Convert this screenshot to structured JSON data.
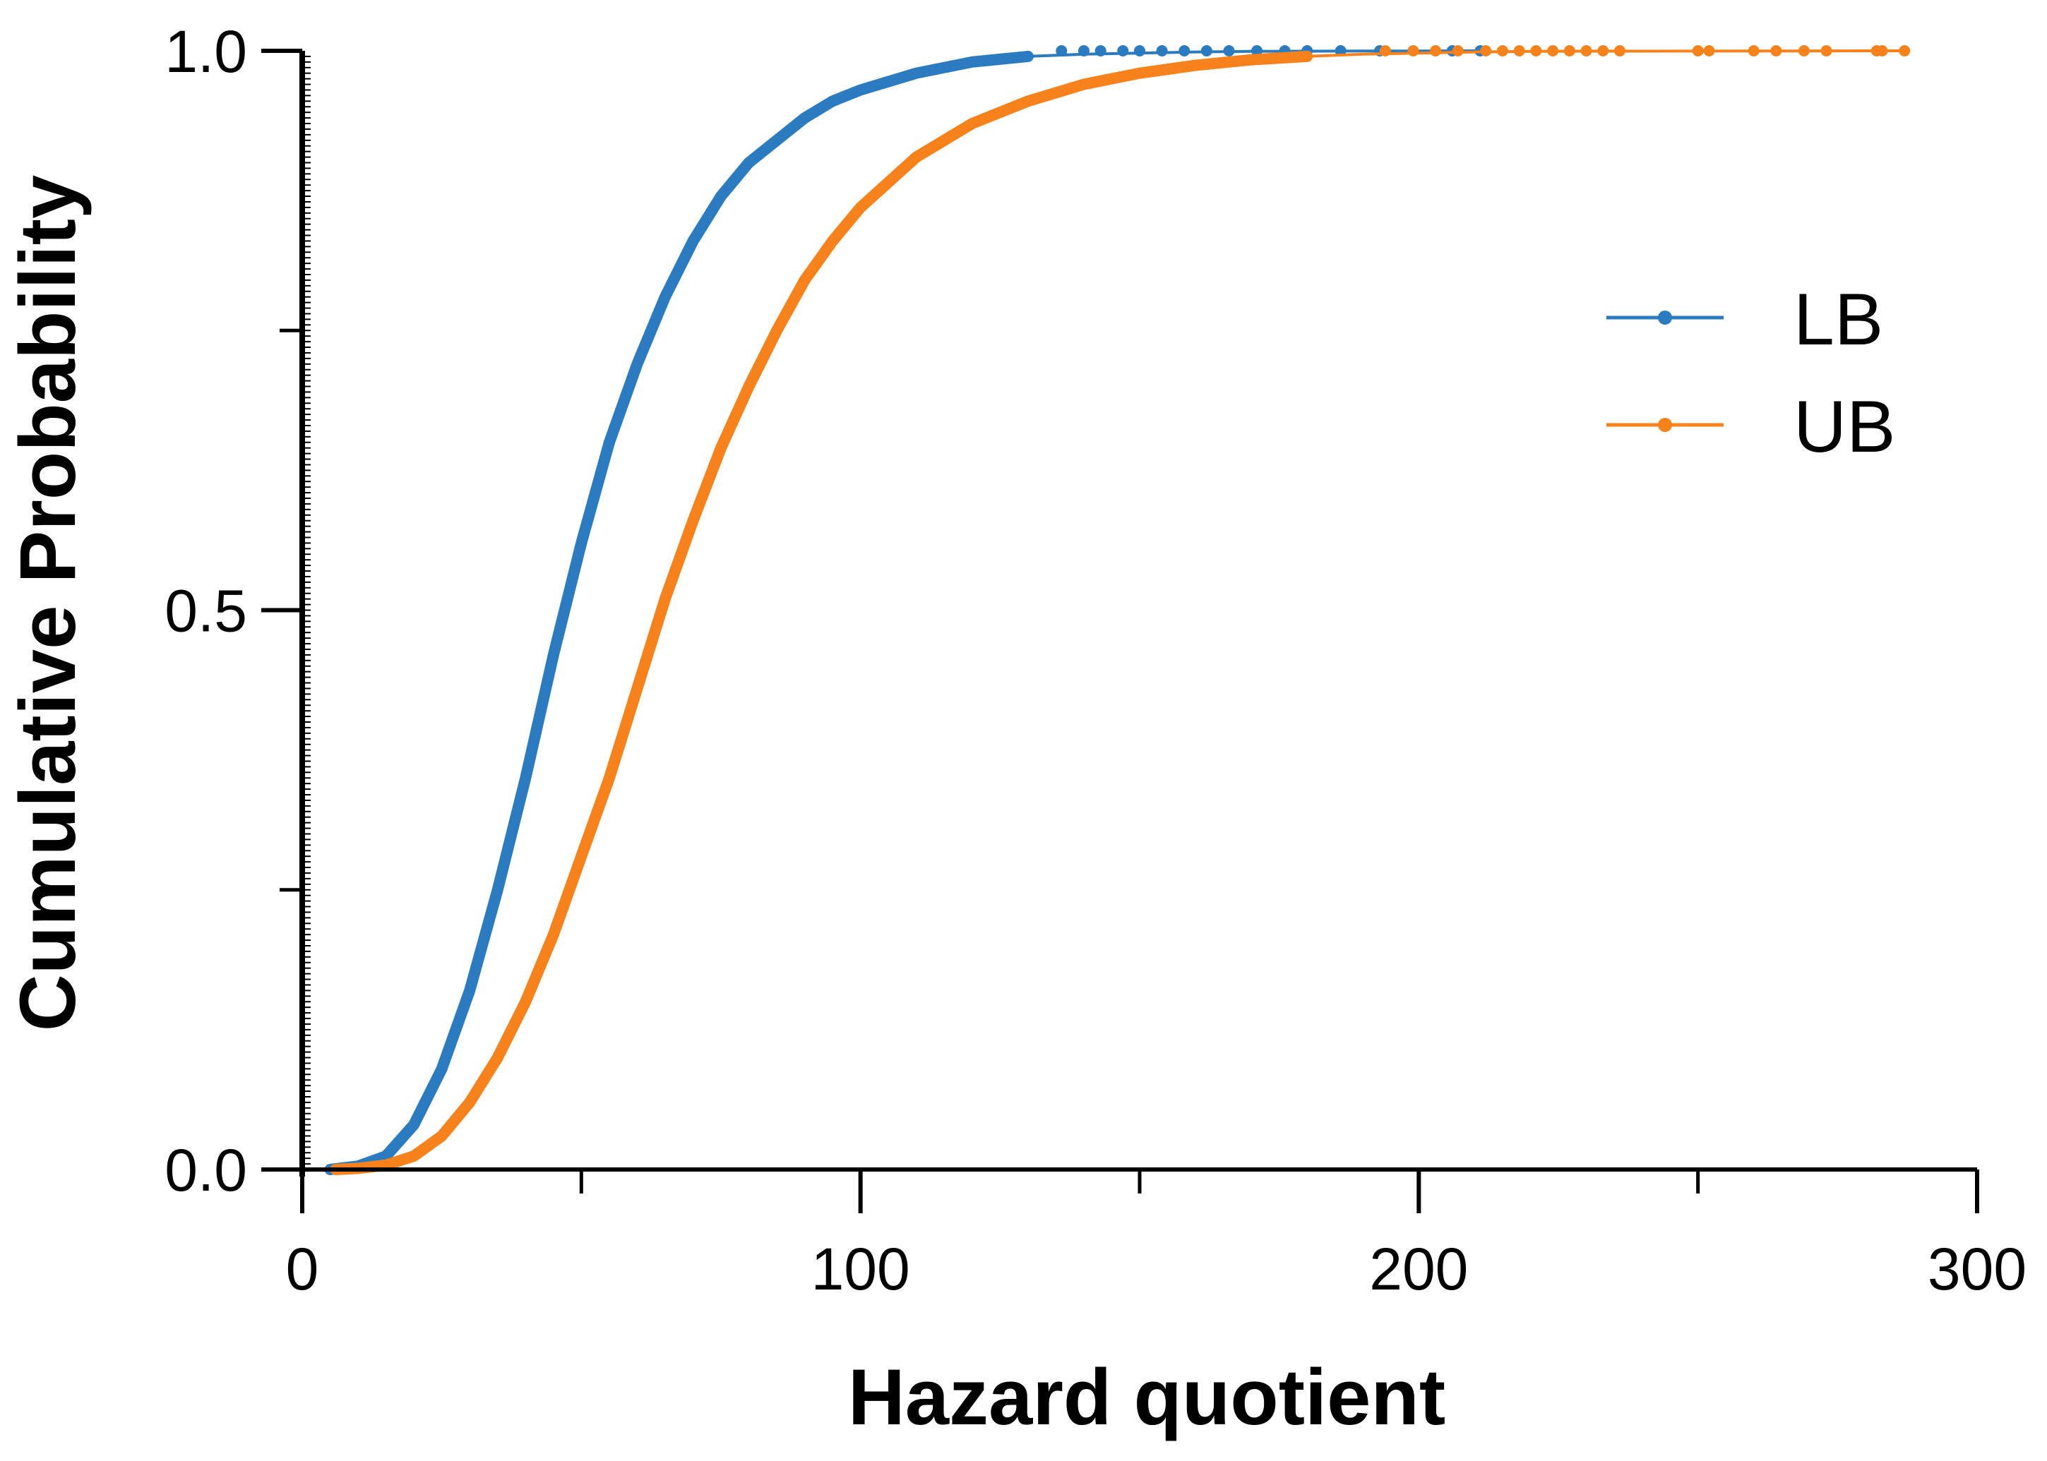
{
  "chart_data": {
    "type": "line",
    "xlabel": "Hazard quotient",
    "ylabel": "Cumulative Probability",
    "xlim": [
      0,
      300
    ],
    "ylim": [
      0,
      1.0
    ],
    "x_ticks": [
      0,
      100,
      200,
      300
    ],
    "x_tick_labels": [
      "0",
      "100",
      "200",
      "300"
    ],
    "x_minor_ticks": [
      50,
      150,
      250
    ],
    "y_ticks": [
      0.0,
      0.5,
      1.0
    ],
    "y_tick_labels": [
      "0.0",
      "0.5",
      "1.0"
    ],
    "y_minor_ticks": [
      0.25,
      0.75
    ],
    "grid": false,
    "legend_position": "right",
    "series": [
      {
        "name": "LB",
        "color": "#2a7bbf",
        "points": [
          [
            5,
            0.0
          ],
          [
            10,
            0.003
          ],
          [
            15,
            0.012
          ],
          [
            20,
            0.04
          ],
          [
            25,
            0.09
          ],
          [
            30,
            0.16
          ],
          [
            35,
            0.25
          ],
          [
            40,
            0.35
          ],
          [
            45,
            0.46
          ],
          [
            50,
            0.56
          ],
          [
            55,
            0.65
          ],
          [
            60,
            0.72
          ],
          [
            65,
            0.78
          ],
          [
            70,
            0.83
          ],
          [
            75,
            0.87
          ],
          [
            80,
            0.9
          ],
          [
            85,
            0.92
          ],
          [
            90,
            0.94
          ],
          [
            95,
            0.955
          ],
          [
            100,
            0.965
          ],
          [
            110,
            0.98
          ],
          [
            120,
            0.99
          ],
          [
            130,
            0.995
          ],
          [
            140,
            0.997
          ],
          [
            150,
            0.998
          ],
          [
            160,
            0.999
          ],
          [
            170,
            0.9995
          ],
          [
            180,
            0.9997
          ],
          [
            190,
            0.9998
          ],
          [
            200,
            0.9999
          ],
          [
            212,
            1.0
          ]
        ],
        "markers": [
          136,
          140,
          143,
          147,
          150,
          154,
          158,
          162,
          166,
          171,
          176,
          180,
          186,
          193,
          206,
          211
        ]
      },
      {
        "name": "UB",
        "color": "#f7821b",
        "points": [
          [
            6,
            0.0
          ],
          [
            10,
            0.001
          ],
          [
            15,
            0.004
          ],
          [
            20,
            0.012
          ],
          [
            25,
            0.03
          ],
          [
            30,
            0.06
          ],
          [
            35,
            0.1
          ],
          [
            40,
            0.15
          ],
          [
            45,
            0.21
          ],
          [
            50,
            0.28
          ],
          [
            55,
            0.35
          ],
          [
            60,
            0.43
          ],
          [
            65,
            0.51
          ],
          [
            70,
            0.58
          ],
          [
            75,
            0.645
          ],
          [
            80,
            0.7
          ],
          [
            85,
            0.75
          ],
          [
            90,
            0.795
          ],
          [
            95,
            0.83
          ],
          [
            100,
            0.86
          ],
          [
            110,
            0.905
          ],
          [
            120,
            0.935
          ],
          [
            130,
            0.955
          ],
          [
            140,
            0.97
          ],
          [
            150,
            0.98
          ],
          [
            160,
            0.987
          ],
          [
            170,
            0.992
          ],
          [
            180,
            0.995
          ],
          [
            190,
            0.997
          ],
          [
            200,
            0.998
          ],
          [
            210,
            0.999
          ],
          [
            220,
            0.9995
          ],
          [
            235,
            0.9997
          ],
          [
            260,
            0.9998
          ],
          [
            287,
            1.0
          ]
        ],
        "markers": [
          194,
          199,
          203,
          207,
          212,
          215,
          218,
          221,
          224,
          227,
          230,
          233,
          236,
          250,
          252,
          260,
          264,
          269,
          273,
          282,
          283,
          287
        ]
      }
    ]
  }
}
